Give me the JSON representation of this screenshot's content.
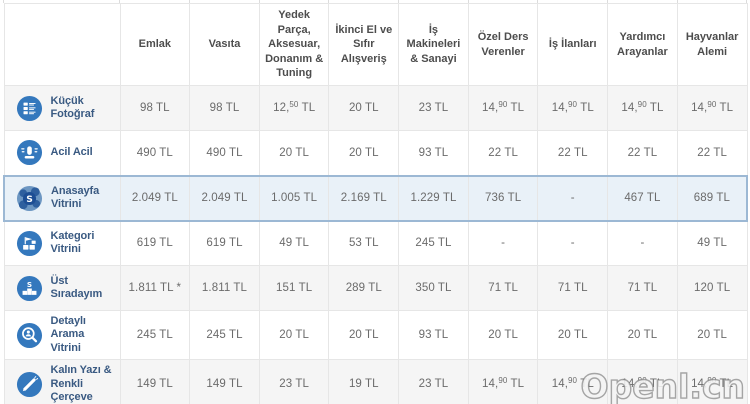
{
  "watermark": {
    "text": "Openl.cn"
  },
  "colors": {
    "icon_blue": "#3478bd",
    "zebra_row": "#f5f5f5",
    "highlight_bg": "#e9f1f8",
    "highlight_border": "#9cb8d4",
    "grid_border": "#e6e6e6",
    "header_text": "#4d4d4d",
    "value_text": "#6b6b6b",
    "label_text": "#3a5a82"
  },
  "table": {
    "corner_label": "",
    "columns": [
      "Emlak",
      "Vasıta",
      "Yedek Parça, Aksesuar, Donanım & Tuning",
      "İkinci El ve Sıfır Alışveriş",
      "İş Makineleri & Sanayi",
      "Özel Ders Verenler",
      "İş İlanları",
      "Yardımcı Arayanlar",
      "Hayvanlar Alemi"
    ],
    "rows": [
      {
        "label": "Küçük Fotoğraf",
        "icon": "small-photo-icon",
        "highlighted": false,
        "values": [
          "98 TL",
          "98 TL",
          "12,50 TL",
          "20 TL",
          "23 TL",
          "14,90 TL",
          "14,90 TL",
          "14,90 TL",
          "14,90 TL"
        ]
      },
      {
        "label": "Acil Acil",
        "icon": "urgent-icon",
        "highlighted": false,
        "values": [
          "490 TL",
          "490 TL",
          "20 TL",
          "20 TL",
          "93 TL",
          "22 TL",
          "22 TL",
          "22 TL",
          "22 TL"
        ]
      },
      {
        "label": "Anasayfa Vitrini",
        "icon": "homepage-showcase-icon",
        "highlighted": true,
        "values": [
          "2.049 TL",
          "2.049 TL",
          "1.005 TL",
          "2.169 TL",
          "1.229 TL",
          "736 TL",
          "-",
          "467 TL",
          "689 TL"
        ]
      },
      {
        "label": "Kategori Vitrini",
        "icon": "category-showcase-icon",
        "highlighted": false,
        "values": [
          "619 TL",
          "619 TL",
          "49 TL",
          "53 TL",
          "245 TL",
          "-",
          "-",
          "-",
          "49 TL"
        ]
      },
      {
        "label": "Üst Sıradayım",
        "icon": "top-rank-icon",
        "highlighted": false,
        "values": [
          "1.811 TL *",
          "1.811 TL",
          "151 TL",
          "289 TL",
          "350 TL",
          "71 TL",
          "71 TL",
          "71 TL",
          "120 TL"
        ]
      },
      {
        "label": "Detaylı Arama Vitrini",
        "icon": "detailed-search-icon",
        "highlighted": false,
        "values": [
          "245 TL",
          "245 TL",
          "20 TL",
          "20 TL",
          "93 TL",
          "20 TL",
          "20 TL",
          "20 TL",
          "20 TL"
        ]
      },
      {
        "label": "Kalın Yazı & Renkli Çerçeve",
        "icon": "bold-text-frame-icon",
        "highlighted": false,
        "values": [
          "149 TL",
          "149 TL",
          "23 TL",
          "19 TL",
          "23 TL",
          "14,90 TL",
          "14,90 TL",
          "14,90 TL",
          "14,90 TL"
        ]
      }
    ]
  }
}
